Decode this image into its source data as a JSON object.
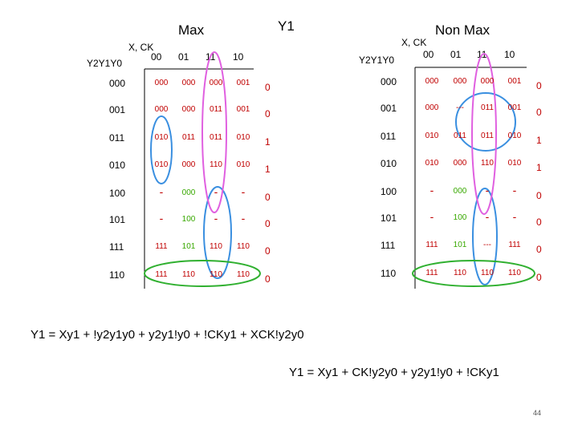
{
  "title": "Y1",
  "slide_number": "44",
  "colors": {
    "cell_text": "#c00000",
    "cell_green": "#38a800",
    "output_text": "#c00000",
    "oval_blue": "#3a8fe0",
    "oval_pink": "#e060e0",
    "oval_green": "#30b030",
    "table_line": "#000000"
  },
  "col_headers": [
    "00",
    "01",
    "11",
    "10"
  ],
  "row_labels": [
    "000",
    "001",
    "011",
    "010",
    "100",
    "101",
    "111",
    "110"
  ],
  "max_map": {
    "title": "Max",
    "col_var_label": "X, CK",
    "row_var_label": "Y2Y1Y0",
    "rows": [
      {
        "cells": [
          "000",
          "000",
          "000",
          "001"
        ],
        "out": "0"
      },
      {
        "cells": [
          "000",
          "000",
          "011",
          "001"
        ],
        "out": "0"
      },
      {
        "cells": [
          "010",
          "011",
          "011",
          "010"
        ],
        "out": "1"
      },
      {
        "cells": [
          "010",
          "000",
          "110",
          "010"
        ],
        "out": "1"
      },
      {
        "cells": [
          "-",
          "000",
          "-",
          "-"
        ],
        "out": "0"
      },
      {
        "cells": [
          "-",
          "100",
          "-",
          "-"
        ],
        "out": "0"
      },
      {
        "cells": [
          "111",
          "101",
          "110",
          "110"
        ],
        "out": "0"
      },
      {
        "cells": [
          "111",
          "110",
          "110",
          "110"
        ],
        "out": "0"
      }
    ]
  },
  "nonmax_map": {
    "title": "Non Max",
    "col_var_label": "X, CK",
    "row_var_label": "Y2Y1Y0",
    "rows": [
      {
        "cells": [
          "000",
          "000",
          "000",
          "001"
        ],
        "out": "0"
      },
      {
        "cells": [
          "000",
          "---",
          "011",
          "001"
        ],
        "out": "0"
      },
      {
        "cells": [
          "010",
          "011",
          "011",
          "010"
        ],
        "out": "1"
      },
      {
        "cells": [
          "010",
          "000",
          "110",
          "010"
        ],
        "out": "1"
      },
      {
        "cells": [
          "-",
          "000",
          "-",
          "-"
        ],
        "out": "0"
      },
      {
        "cells": [
          "-",
          "100",
          "-",
          "-"
        ],
        "out": "0"
      },
      {
        "cells": [
          "111",
          "101",
          "---",
          "111"
        ],
        "out": "0"
      },
      {
        "cells": [
          "111",
          "110",
          "110",
          "110"
        ],
        "out": "0"
      }
    ]
  },
  "equation_max": "Y1 = Xy1 + !y2y1y0 + y2y1!y0 + !CKy1 + XCK!y2y0",
  "equation_nonmax": "Y1 = Xy1 + CK!y2y0 + y2y1!y0 + !CKy1"
}
